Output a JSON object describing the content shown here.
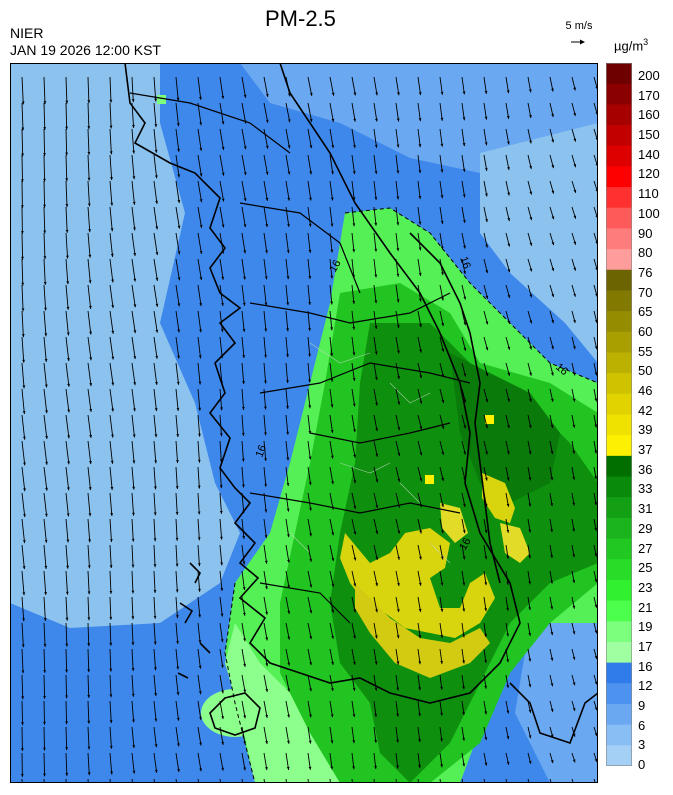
{
  "header": {
    "agency": "NIER",
    "datetime": "JAN 19 2026 12:00 KST",
    "title": "PM-2.5",
    "ref_vector_label": "5 m/s",
    "unit": "µg/m",
    "unit_exp": "3"
  },
  "contour_label": "16",
  "legend": {
    "levels": [
      "200",
      "170",
      "160",
      "150",
      "140",
      "120",
      "110",
      "100",
      "90",
      "80",
      "76",
      "70",
      "65",
      "60",
      "55",
      "50",
      "46",
      "42",
      "39",
      "37",
      "36",
      "33",
      "31",
      "29",
      "27",
      "25",
      "23",
      "21",
      "19",
      "17",
      "16",
      "12",
      "9",
      "6",
      "3",
      "0"
    ],
    "colors": [
      "#6e0000",
      "#8a0000",
      "#a60000",
      "#c20000",
      "#de0000",
      "#ff0000",
      "#ff3030",
      "#ff5a5a",
      "#ff7c7c",
      "#ff9c9c",
      "#6b6400",
      "#827a00",
      "#968c00",
      "#aa9f00",
      "#bcb100",
      "#cfc300",
      "#e0d300",
      "#efe100",
      "#fdf000",
      "#006f00",
      "#0a8a0a",
      "#14a014",
      "#1cb41c",
      "#22c822",
      "#28dc28",
      "#30f030",
      "#4cff4c",
      "#7cff7c",
      "#a0ffa0",
      "#2f7cea",
      "#4c92ee",
      "#6aa8f2",
      "#88bef4",
      "#a4d0f6"
    ]
  },
  "map_colors": {
    "bg_blue": "#3e88ec",
    "light_blue": "#8cc2ee",
    "green_low": "#55f055",
    "green_mid": "#22c422",
    "green_dark": "#0e8f0e",
    "yellow": "#d8d40e",
    "yellow_pale": "#e2dc28",
    "coast": "#000000",
    "border": "#cfd8cf"
  }
}
